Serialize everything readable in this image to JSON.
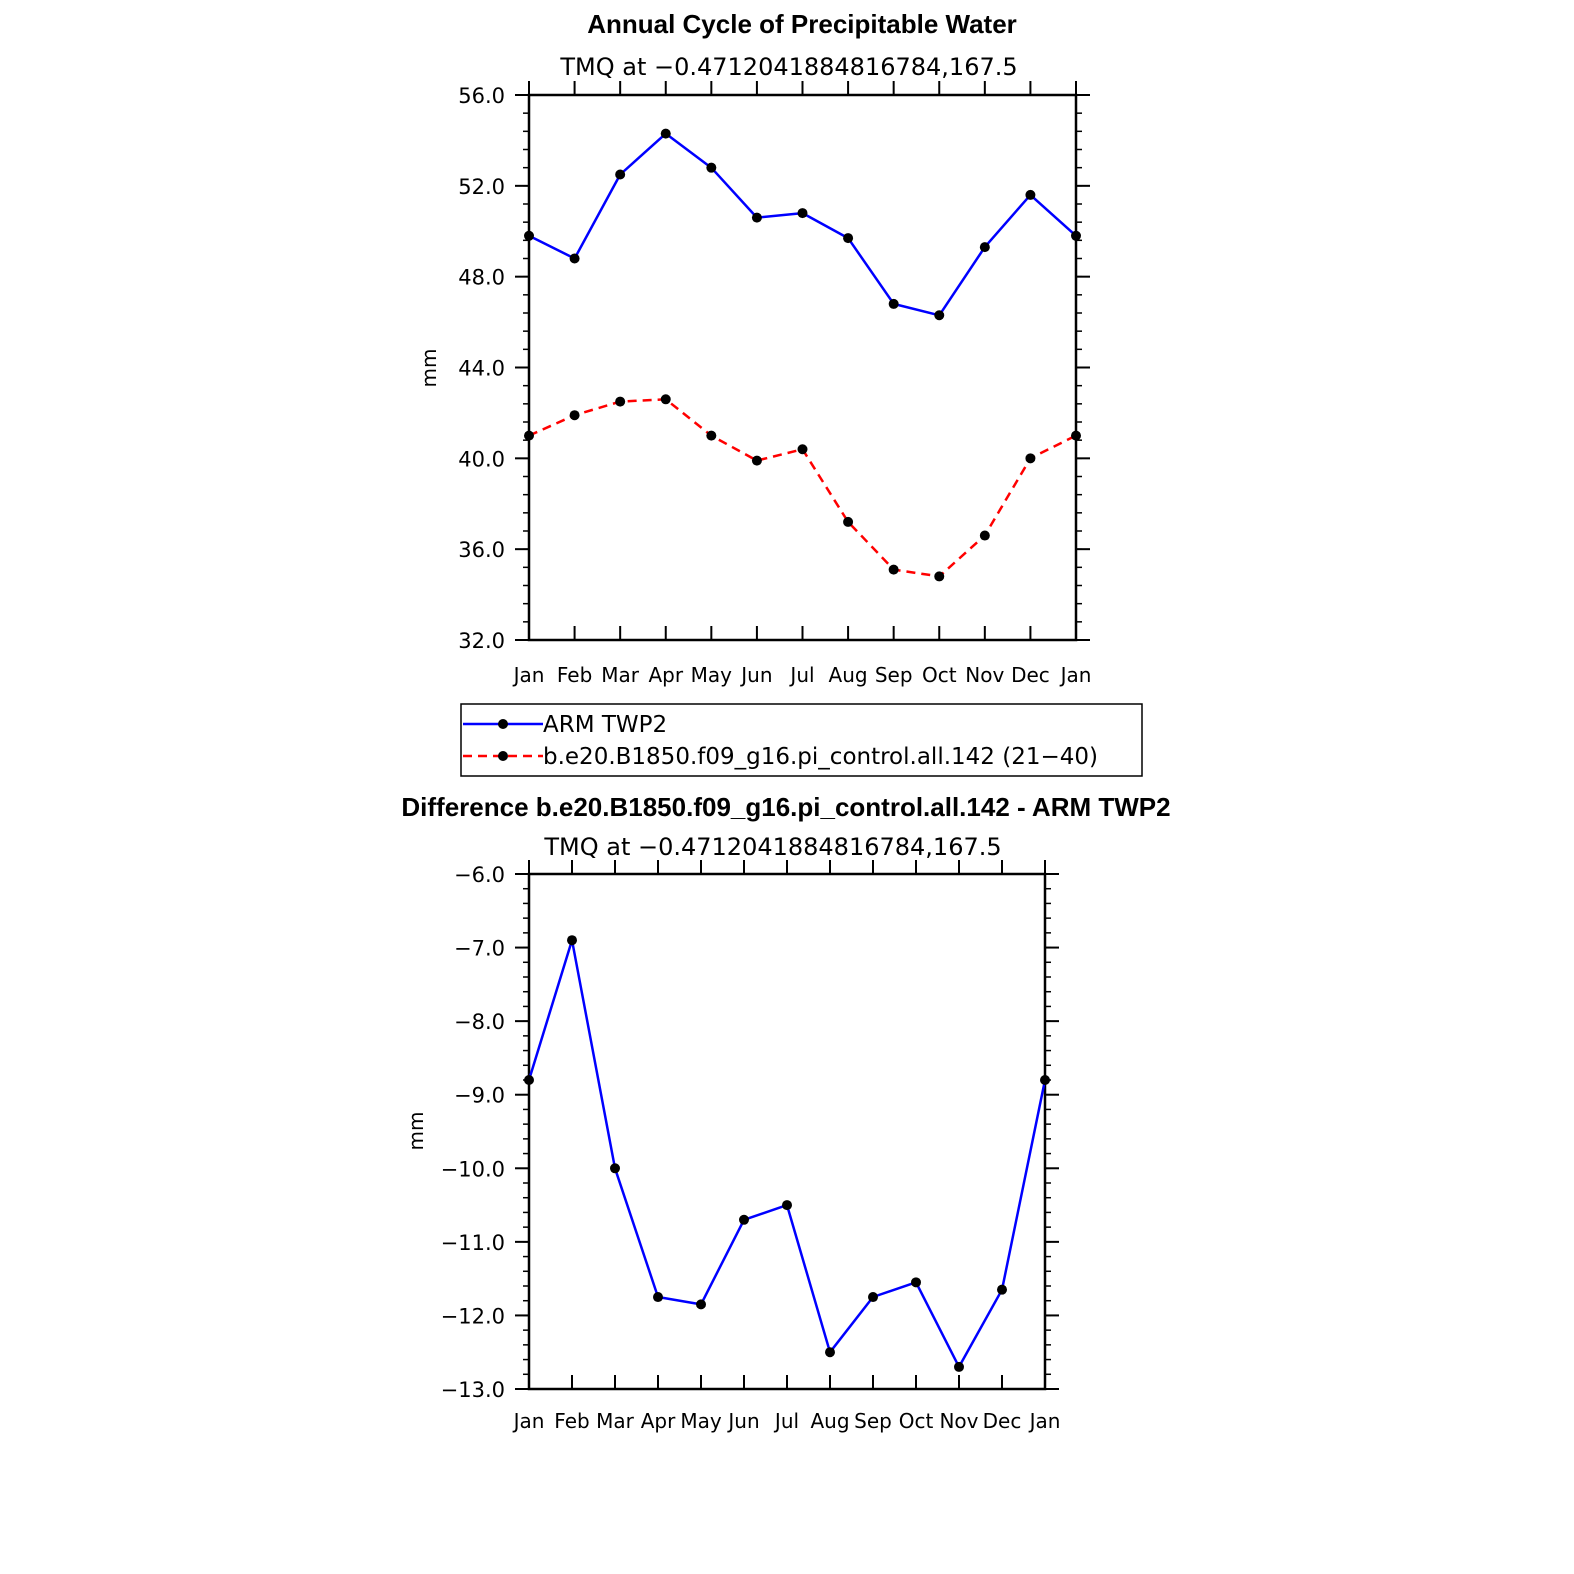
{
  "chart_data": [
    {
      "type": "line",
      "title": "Annual Cycle of Precipitable Water",
      "subtitle": "TMQ at −0.4712041884816784,167.5",
      "xlabel": "",
      "ylabel": "mm",
      "categories": [
        "Jan",
        "Feb",
        "Mar",
        "Apr",
        "May",
        "Jun",
        "Jul",
        "Aug",
        "Sep",
        "Oct",
        "Nov",
        "Dec",
        "Jan"
      ],
      "ylim": [
        32.0,
        56.0
      ],
      "yticks": [
        32.0,
        36.0,
        40.0,
        44.0,
        48.0,
        52.0,
        56.0
      ],
      "ytick_labels": [
        "32.0",
        "36.0",
        "40.0",
        "44.0",
        "48.0",
        "52.0",
        "56.0"
      ],
      "grid": false,
      "legend_position": "below",
      "series": [
        {
          "name": "ARM TWP2",
          "color": "#0000ff",
          "dash": "solid",
          "values": [
            49.8,
            48.8,
            52.5,
            54.3,
            52.8,
            50.6,
            50.8,
            49.7,
            46.8,
            46.3,
            49.3,
            51.6,
            49.8
          ]
        },
        {
          "name": "b.e20.B1850.f09_g16.pi_control.all.142 (21−40)",
          "color": "#ff0000",
          "dash": "dashed",
          "values": [
            41.0,
            41.9,
            42.5,
            42.6,
            41.0,
            39.9,
            40.4,
            37.2,
            35.1,
            34.8,
            36.6,
            40.0,
            41.0
          ]
        }
      ]
    },
    {
      "type": "line",
      "title": "Difference b.e20.B1850.f09_g16.pi_control.all.142 - ARM TWP2",
      "subtitle": "TMQ at −0.4712041884816784,167.5",
      "xlabel": "",
      "ylabel": "mm",
      "categories": [
        "Jan",
        "Feb",
        "Mar",
        "Apr",
        "May",
        "Jun",
        "Jul",
        "Aug",
        "Sep",
        "Oct",
        "Nov",
        "Dec",
        "Jan"
      ],
      "ylim": [
        -13.0,
        -6.0
      ],
      "yticks": [
        -13.0,
        -12.0,
        -11.0,
        -10.0,
        -9.0,
        -8.0,
        -7.0,
        -6.0
      ],
      "ytick_labels": [
        "−13.0",
        "−12.0",
        "−11.0",
        "−10.0",
        "−9.0",
        "−8.0",
        "−7.0",
        "−6.0"
      ],
      "grid": false,
      "series": [
        {
          "name": "Difference",
          "color": "#0000ff",
          "dash": "solid",
          "values": [
            -8.8,
            -6.9,
            -10.0,
            -11.75,
            -11.85,
            -10.7,
            -10.5,
            -12.5,
            -11.75,
            -11.55,
            -12.7,
            -11.65,
            -8.8
          ]
        }
      ]
    }
  ]
}
